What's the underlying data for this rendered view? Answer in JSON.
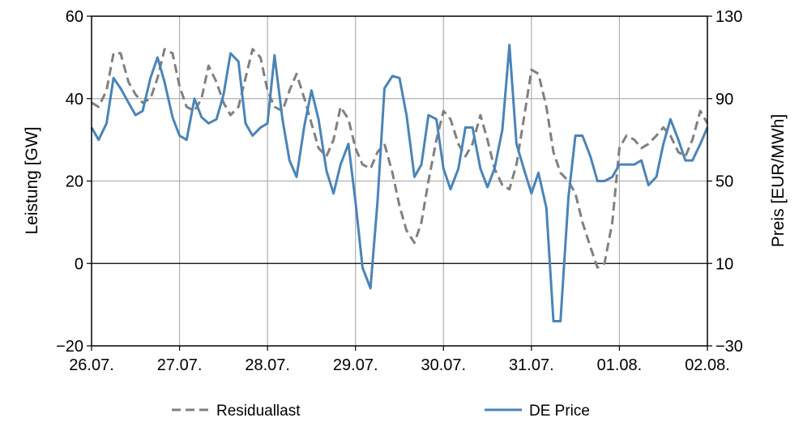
{
  "chart_data": {
    "type": "line",
    "title": "",
    "xlabel": "",
    "ylabel": "Leistung [GW]",
    "y2label": "Preis [EUR/MWh]",
    "x_tick_labels": [
      "26.07.",
      "27.07.",
      "28.07.",
      "29.07.",
      "30.07.",
      "31.07.",
      "01.08.",
      "02.08."
    ],
    "xlim": [
      0,
      7
    ],
    "ylim": [
      -20,
      60
    ],
    "y2lim": [
      -30,
      130
    ],
    "y_ticks": [
      -20,
      0,
      20,
      40,
      60
    ],
    "y_tick_labels": [
      "−20",
      "0",
      "20",
      "40",
      "60"
    ],
    "y2_ticks": [
      -30,
      10,
      50,
      90,
      130
    ],
    "y2_tick_labels": [
      "−30",
      "10",
      "50",
      "90",
      "130"
    ],
    "grid": true,
    "legend_position": "bottom",
    "series": [
      {
        "name": "Residuallast",
        "axis": "left",
        "color": "#808080",
        "style": "dashed",
        "x": [
          0,
          0.08,
          0.17,
          0.25,
          0.33,
          0.42,
          0.5,
          0.58,
          0.67,
          0.75,
          0.83,
          0.92,
          1.0,
          1.08,
          1.17,
          1.25,
          1.33,
          1.42,
          1.5,
          1.58,
          1.67,
          1.75,
          1.83,
          1.92,
          2.0,
          2.08,
          2.17,
          2.25,
          2.33,
          2.42,
          2.5,
          2.58,
          2.67,
          2.75,
          2.83,
          2.92,
          3.0,
          3.08,
          3.17,
          3.25,
          3.33,
          3.42,
          3.5,
          3.58,
          3.67,
          3.75,
          3.83,
          3.92,
          4.0,
          4.08,
          4.17,
          4.25,
          4.33,
          4.42,
          4.5,
          4.58,
          4.67,
          4.75,
          4.83,
          4.92,
          5.0,
          5.08,
          5.17,
          5.25,
          5.33,
          5.42,
          5.5,
          5.58,
          5.67,
          5.75,
          5.83,
          5.92,
          6.0,
          6.08,
          6.17,
          6.25,
          6.33,
          6.42,
          6.5,
          6.58,
          6.67,
          6.75,
          6.83,
          6.92,
          7.0
        ],
        "y": [
          39,
          38,
          42,
          51,
          51,
          44,
          41,
          39,
          40,
          45,
          52,
          51,
          43,
          38,
          37,
          40,
          48,
          44,
          39,
          36,
          38,
          45,
          52,
          50,
          42,
          38,
          37,
          42,
          46,
          40,
          34,
          28,
          26,
          30,
          38,
          35,
          28,
          24,
          23,
          27,
          29,
          22,
          14,
          8,
          5,
          10,
          20,
          30,
          37,
          35,
          29,
          26,
          29,
          36,
          30,
          23,
          19,
          18,
          24,
          36,
          47,
          46,
          38,
          27,
          22,
          20,
          17,
          10,
          4,
          -1,
          0,
          10,
          28,
          31,
          30,
          28,
          29,
          31,
          33,
          31,
          27,
          26,
          30,
          37,
          34
        ]
      },
      {
        "name": "DE Price",
        "axis": "right",
        "color": "#4a84b7",
        "style": "solid",
        "x": [
          0,
          0.08,
          0.17,
          0.25,
          0.33,
          0.42,
          0.5,
          0.58,
          0.67,
          0.75,
          0.83,
          0.92,
          1.0,
          1.08,
          1.17,
          1.25,
          1.33,
          1.42,
          1.5,
          1.58,
          1.67,
          1.75,
          1.83,
          1.92,
          2.0,
          2.08,
          2.17,
          2.25,
          2.33,
          2.42,
          2.5,
          2.58,
          2.67,
          2.75,
          2.83,
          2.92,
          3.0,
          3.08,
          3.17,
          3.25,
          3.33,
          3.42,
          3.5,
          3.58,
          3.67,
          3.75,
          3.83,
          3.92,
          4.0,
          4.08,
          4.17,
          4.25,
          4.33,
          4.42,
          4.5,
          4.58,
          4.67,
          4.75,
          4.83,
          4.92,
          5.0,
          5.08,
          5.17,
          5.25,
          5.33,
          5.42,
          5.5,
          5.58,
          5.67,
          5.75,
          5.83,
          5.92,
          6.0,
          6.08,
          6.17,
          6.25,
          6.33,
          6.42,
          6.5,
          6.58,
          6.67,
          6.75,
          6.83,
          6.92,
          7.0
        ],
        "y": [
          76,
          70,
          78,
          100,
          95,
          88,
          82,
          84,
          100,
          110,
          98,
          81,
          72,
          70,
          90,
          81,
          78,
          80,
          92,
          112,
          108,
          78,
          72,
          76,
          78,
          111,
          80,
          60,
          52,
          77,
          94,
          80,
          55,
          44,
          58,
          68,
          40,
          8,
          -2,
          40,
          95,
          101,
          100,
          82,
          52,
          58,
          82,
          80,
          56,
          46,
          56,
          76,
          76,
          56,
          47,
          56,
          75,
          116,
          68,
          55,
          44,
          54,
          37,
          -18,
          -18,
          42,
          72,
          72,
          62,
          50,
          50,
          52,
          58,
          58,
          58,
          60,
          48,
          52,
          68,
          80,
          70,
          60,
          60,
          68,
          76
        ]
      }
    ]
  }
}
